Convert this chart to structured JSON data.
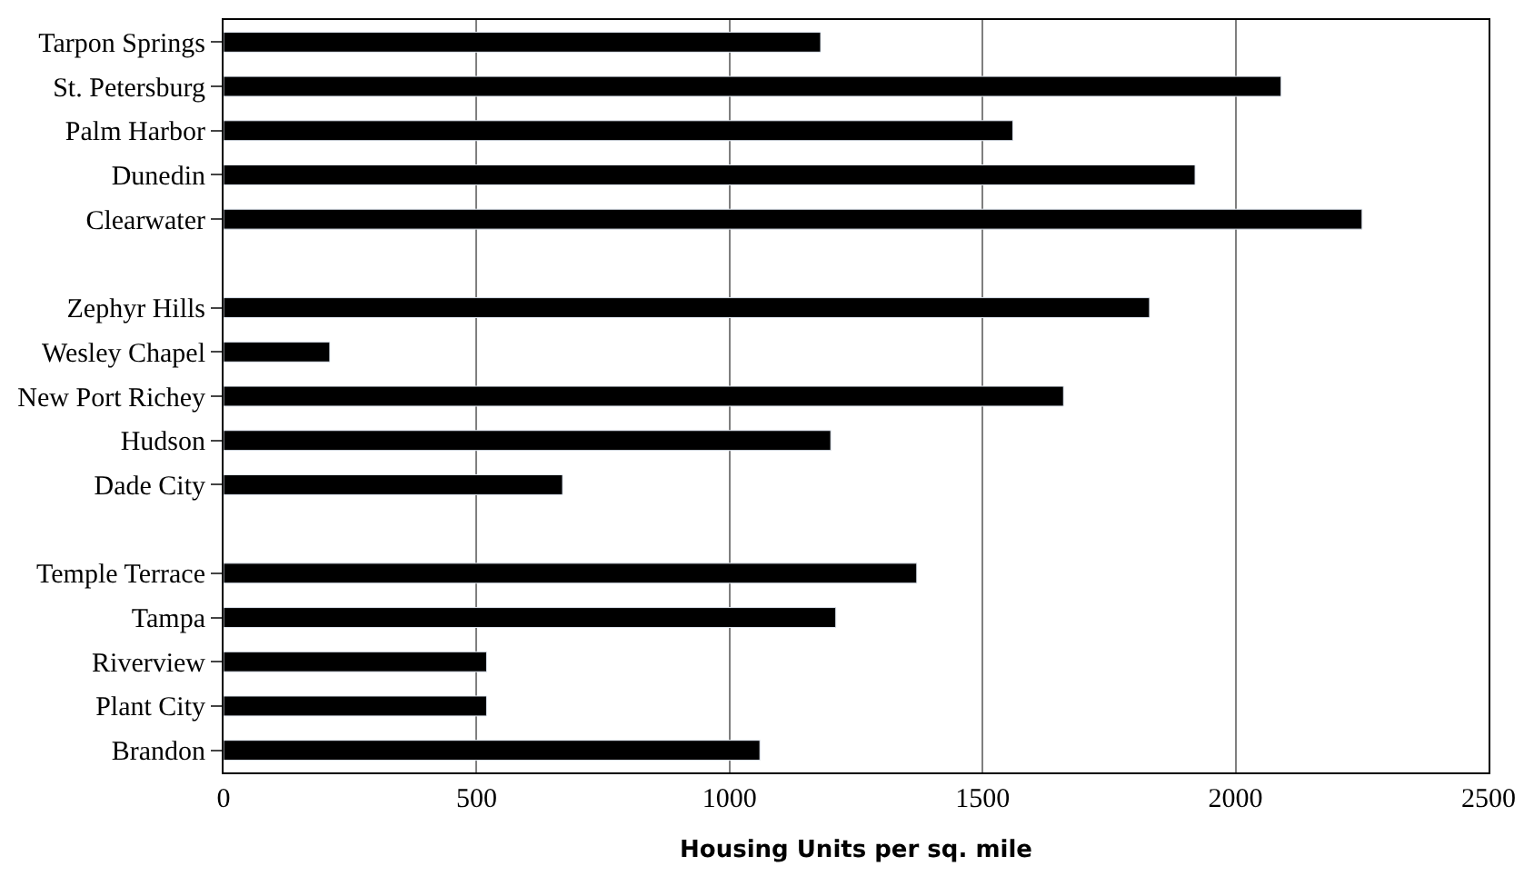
{
  "chart_data": {
    "type": "bar",
    "orientation": "horizontal",
    "xlabel": "Housing Units per sq. mile",
    "categories": [
      "Tarpon Springs",
      "St. Petersburg",
      "Palm Harbor",
      "Dunedin",
      "Clearwater",
      null,
      "Zephyr Hills",
      "Wesley Chapel",
      "New Port Richey",
      "Hudson",
      "Dade City",
      null,
      "Temple Terrace",
      "Tampa",
      "Riverview",
      "Plant City",
      "Brandon"
    ],
    "values": [
      1180,
      2090,
      1560,
      1920,
      2250,
      null,
      1830,
      210,
      1660,
      1200,
      670,
      null,
      1370,
      1210,
      520,
      520,
      1060
    ],
    "color": "#000000",
    "xlim": [
      0,
      2500
    ],
    "xticks": [
      0,
      500,
      1000,
      1500,
      2000,
      2500
    ],
    "grid": "x"
  }
}
